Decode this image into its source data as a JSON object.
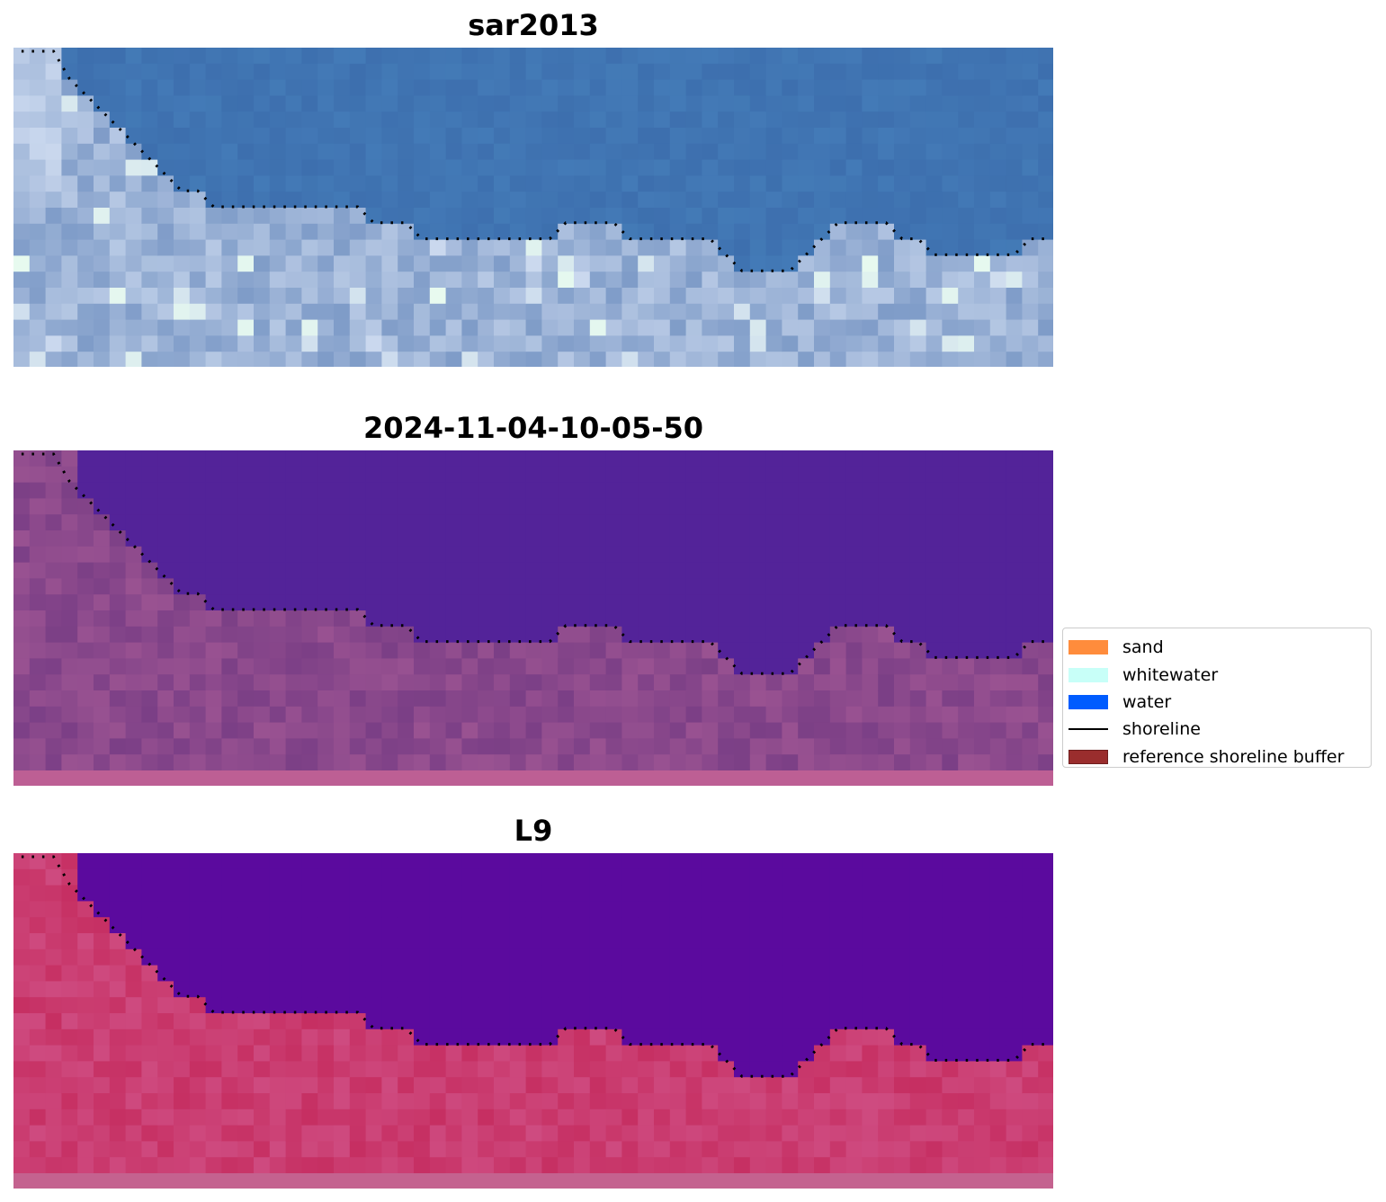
{
  "panels": [
    {
      "title": "sar2013",
      "palette": {
        "water": "#3d6fae",
        "shore": "#7f9cc8",
        "light": "#cad8ee",
        "bright": "#e8fbef"
      }
    },
    {
      "title": "2024-11-04-10-05-50",
      "palette": {
        "water": "#532399",
        "land": "#7b3f86",
        "land_light": "#a65a96",
        "band": "#bd5f94"
      }
    },
    {
      "title": "L9",
      "palette": {
        "water": "#5b0a9e",
        "land": "#c62f62",
        "land_light": "#d2578d",
        "band": "#c4628f"
      }
    }
  ],
  "legend": {
    "items": [
      {
        "label": "sand",
        "color": "#ff8c3c",
        "kind": "patch"
      },
      {
        "label": "whitewater",
        "color": "#c8fff8",
        "kind": "patch"
      },
      {
        "label": "water",
        "color": "#005cff",
        "kind": "patch"
      },
      {
        "label": "shoreline",
        "color": "#000000",
        "kind": "line"
      },
      {
        "label": "reference shoreline buffer",
        "color": "#9a2d2d",
        "edge": "#6e1e1e",
        "kind": "patch"
      }
    ]
  },
  "shoreline": {
    "style": "dotted",
    "color": "#000000"
  }
}
